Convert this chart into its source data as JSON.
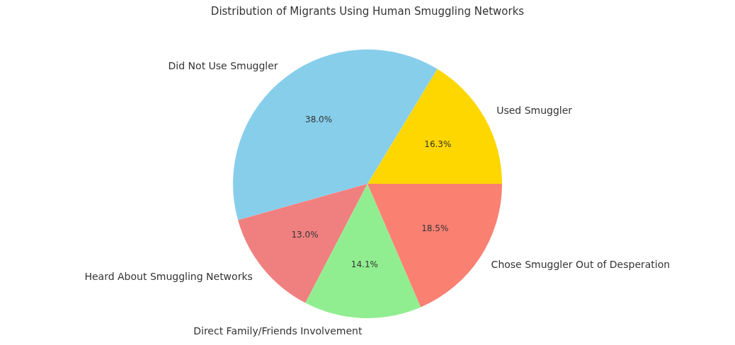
{
  "chart_data": {
    "type": "pie",
    "title": "Distribution of Migrants Using Human Smuggling Networks",
    "categories": [
      "Used Smuggler",
      "Did Not Use Smuggler",
      "Heard About Smuggling Networks",
      "Direct Family/Friends Involvement",
      "Chose Smuggler Out of Desperation"
    ],
    "values": [
      16.3,
      38.0,
      13.0,
      14.1,
      18.5
    ],
    "colors": [
      "#ffd700",
      "#87ceeb",
      "#f08080",
      "#90ee90",
      "#fa8072"
    ],
    "value_labels": [
      "16.3%",
      "38.0%",
      "13.0%",
      "14.1%",
      "18.5%"
    ],
    "legend": false
  }
}
